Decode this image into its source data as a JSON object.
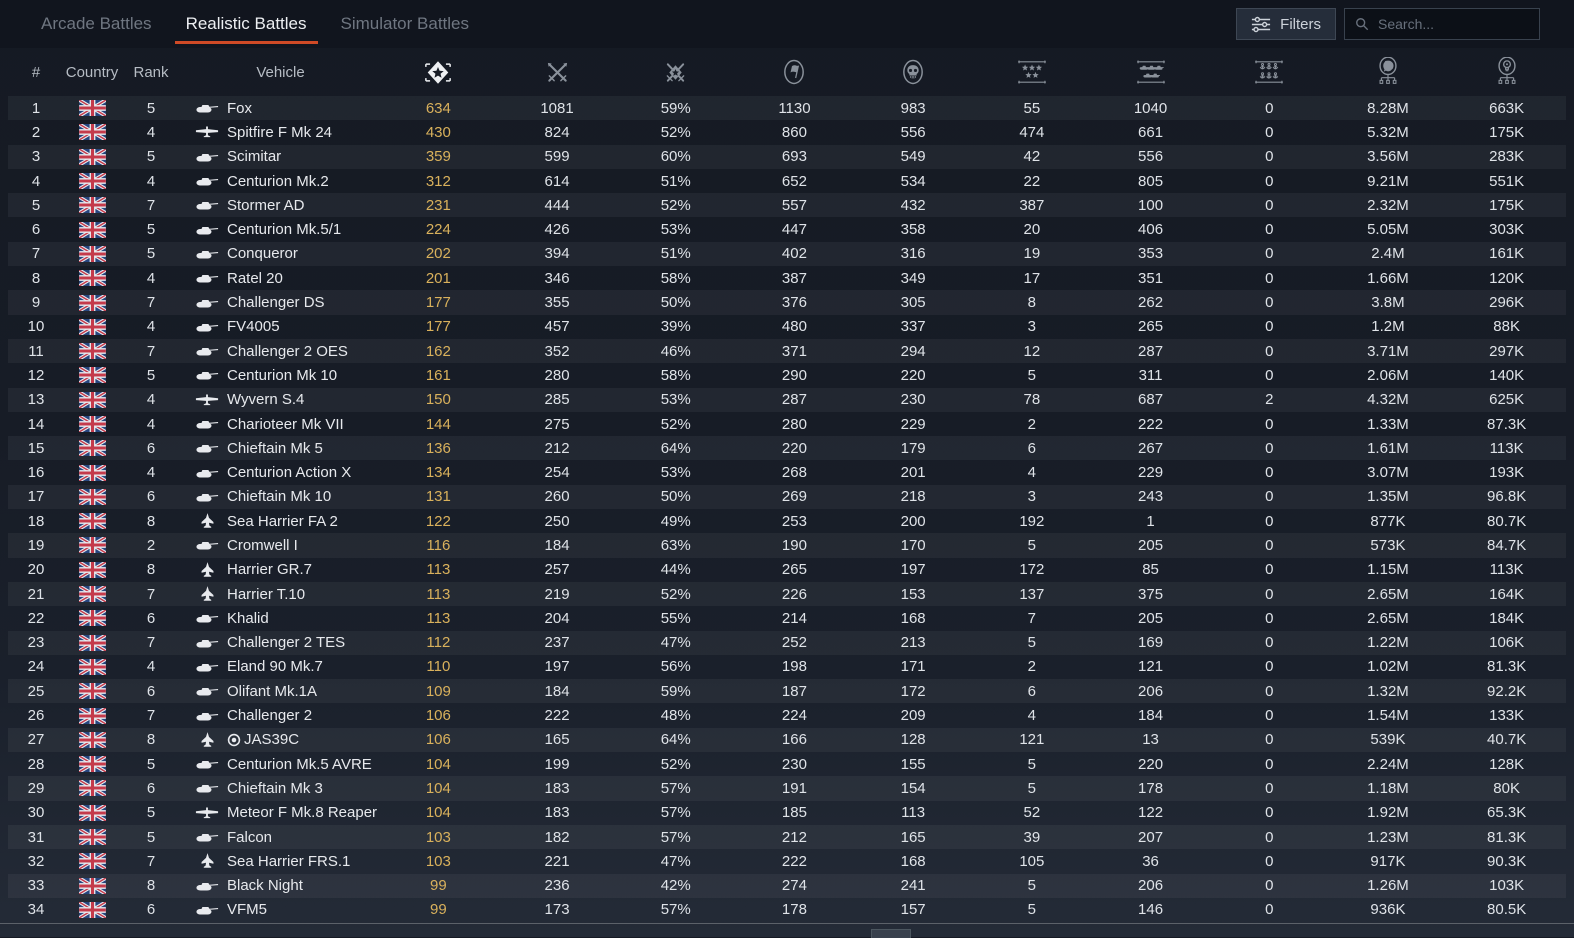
{
  "tabs": [
    {
      "label": "Arcade Battles",
      "active": false
    },
    {
      "label": "Realistic Battles",
      "active": true
    },
    {
      "label": "Simulator Battles",
      "active": false
    }
  ],
  "toolbar": {
    "filters_label": "Filters",
    "search_placeholder": "Search...",
    "filters_icon": "sliders-icon",
    "search_icon": "search-icon"
  },
  "colors": {
    "accent_underline": "#cf4a26",
    "sorted_column_gold": "#d9b15c",
    "background": "#171c26"
  },
  "table": {
    "text_columns": [
      "#",
      "Country",
      "Rank",
      "Vehicle"
    ],
    "icon_columns": [
      {
        "id": "victories",
        "icon": "victories-icon",
        "active": true
      },
      {
        "id": "battles",
        "icon": "battles-swords-icon",
        "active": false
      },
      {
        "id": "win-rate",
        "icon": "win-rate-icon",
        "active": false
      },
      {
        "id": "respawns",
        "icon": "respawns-flag-icon",
        "active": false
      },
      {
        "id": "deaths",
        "icon": "deaths-skull-icon",
        "active": false
      },
      {
        "id": "air-targets",
        "icon": "air-targets-stars-icon",
        "active": false
      },
      {
        "id": "ground-targets",
        "icon": "ground-targets-icon",
        "active": false
      },
      {
        "id": "naval-targets",
        "icon": "naval-targets-anchors-icon",
        "active": false
      },
      {
        "id": "silver-lions",
        "icon": "silver-lions-icon",
        "active": false
      },
      {
        "id": "research-points",
        "icon": "research-points-icon",
        "active": false
      }
    ],
    "rows": [
      {
        "num": 1,
        "country": "uk-flag-icon",
        "rank": 5,
        "icon": "tank-icon",
        "premium": false,
        "vehicle": "Fox",
        "stats": [
          "634",
          "1081",
          "59%",
          "1130",
          "983",
          "55",
          "1040",
          "0",
          "8.28M",
          "663K"
        ]
      },
      {
        "num": 2,
        "country": "uk-flag-icon",
        "rank": 4,
        "icon": "prop-plane-icon",
        "premium": false,
        "vehicle": "Spitfire F Mk 24",
        "stats": [
          "430",
          "824",
          "52%",
          "860",
          "556",
          "474",
          "661",
          "0",
          "5.32M",
          "175K"
        ]
      },
      {
        "num": 3,
        "country": "uk-flag-icon",
        "rank": 5,
        "icon": "tank-icon",
        "premium": false,
        "vehicle": "Scimitar",
        "stats": [
          "359",
          "599",
          "60%",
          "693",
          "549",
          "42",
          "556",
          "0",
          "3.56M",
          "283K"
        ]
      },
      {
        "num": 4,
        "country": "uk-flag-icon",
        "rank": 4,
        "icon": "tank-icon",
        "premium": false,
        "vehicle": "Centurion Mk.2",
        "stats": [
          "312",
          "614",
          "51%",
          "652",
          "534",
          "22",
          "805",
          "0",
          "9.21M",
          "551K"
        ]
      },
      {
        "num": 5,
        "country": "uk-flag-icon",
        "rank": 7,
        "icon": "tank-icon",
        "premium": false,
        "vehicle": "Stormer AD",
        "stats": [
          "231",
          "444",
          "52%",
          "557",
          "432",
          "387",
          "100",
          "0",
          "2.32M",
          "175K"
        ]
      },
      {
        "num": 6,
        "country": "uk-flag-icon",
        "rank": 5,
        "icon": "tank-icon",
        "premium": false,
        "vehicle": "Centurion Mk.5/1",
        "stats": [
          "224",
          "426",
          "53%",
          "447",
          "358",
          "20",
          "406",
          "0",
          "5.05M",
          "303K"
        ]
      },
      {
        "num": 7,
        "country": "uk-flag-icon",
        "rank": 5,
        "icon": "tank-icon",
        "premium": false,
        "vehicle": "Conqueror",
        "stats": [
          "202",
          "394",
          "51%",
          "402",
          "316",
          "19",
          "353",
          "0",
          "2.4M",
          "161K"
        ]
      },
      {
        "num": 8,
        "country": "uk-flag-icon",
        "rank": 4,
        "icon": "tank-icon",
        "premium": false,
        "vehicle": "Ratel 20",
        "stats": [
          "201",
          "346",
          "58%",
          "387",
          "349",
          "17",
          "351",
          "0",
          "1.66M",
          "120K"
        ]
      },
      {
        "num": 9,
        "country": "uk-flag-icon",
        "rank": 7,
        "icon": "tank-icon",
        "premium": false,
        "vehicle": "Challenger DS",
        "stats": [
          "177",
          "355",
          "50%",
          "376",
          "305",
          "8",
          "262",
          "0",
          "3.8M",
          "296K"
        ]
      },
      {
        "num": 10,
        "country": "uk-flag-icon",
        "rank": 4,
        "icon": "tank-icon",
        "premium": false,
        "vehicle": "FV4005",
        "stats": [
          "177",
          "457",
          "39%",
          "480",
          "337",
          "3",
          "265",
          "0",
          "1.2M",
          "88K"
        ]
      },
      {
        "num": 11,
        "country": "uk-flag-icon",
        "rank": 7,
        "icon": "tank-icon",
        "premium": false,
        "vehicle": "Challenger 2 OES",
        "stats": [
          "162",
          "352",
          "46%",
          "371",
          "294",
          "12",
          "287",
          "0",
          "3.71M",
          "297K"
        ]
      },
      {
        "num": 12,
        "country": "uk-flag-icon",
        "rank": 5,
        "icon": "tank-icon",
        "premium": false,
        "vehicle": "Centurion Mk 10",
        "stats": [
          "161",
          "280",
          "58%",
          "290",
          "220",
          "5",
          "311",
          "0",
          "2.06M",
          "140K"
        ]
      },
      {
        "num": 13,
        "country": "uk-flag-icon",
        "rank": 4,
        "icon": "prop-plane-icon",
        "premium": false,
        "vehicle": "Wyvern S.4",
        "stats": [
          "150",
          "285",
          "53%",
          "287",
          "230",
          "78",
          "687",
          "2",
          "4.32M",
          "625K"
        ]
      },
      {
        "num": 14,
        "country": "uk-flag-icon",
        "rank": 4,
        "icon": "tank-icon",
        "premium": false,
        "vehicle": "Charioteer Mk VII",
        "stats": [
          "144",
          "275",
          "52%",
          "280",
          "229",
          "2",
          "222",
          "0",
          "1.33M",
          "87.3K"
        ]
      },
      {
        "num": 15,
        "country": "uk-flag-icon",
        "rank": 6,
        "icon": "tank-icon",
        "premium": false,
        "vehicle": "Chieftain Mk 5",
        "stats": [
          "136",
          "212",
          "64%",
          "220",
          "179",
          "6",
          "267",
          "0",
          "1.61M",
          "113K"
        ]
      },
      {
        "num": 16,
        "country": "uk-flag-icon",
        "rank": 4,
        "icon": "tank-icon",
        "premium": false,
        "vehicle": "Centurion Action X",
        "stats": [
          "134",
          "254",
          "53%",
          "268",
          "201",
          "4",
          "229",
          "0",
          "3.07M",
          "193K"
        ]
      },
      {
        "num": 17,
        "country": "uk-flag-icon",
        "rank": 6,
        "icon": "tank-icon",
        "premium": false,
        "vehicle": "Chieftain Mk 10",
        "stats": [
          "131",
          "260",
          "50%",
          "269",
          "218",
          "3",
          "243",
          "0",
          "1.35M",
          "96.8K"
        ]
      },
      {
        "num": 18,
        "country": "uk-flag-icon",
        "rank": 8,
        "icon": "jet-icon",
        "premium": false,
        "vehicle": "Sea Harrier FA 2",
        "stats": [
          "122",
          "250",
          "49%",
          "253",
          "200",
          "192",
          "1",
          "0",
          "877K",
          "80.7K"
        ]
      },
      {
        "num": 19,
        "country": "uk-flag-icon",
        "rank": 2,
        "icon": "tank-icon",
        "premium": false,
        "vehicle": "Cromwell I",
        "stats": [
          "116",
          "184",
          "63%",
          "190",
          "170",
          "5",
          "205",
          "0",
          "573K",
          "84.7K"
        ]
      },
      {
        "num": 20,
        "country": "uk-flag-icon",
        "rank": 8,
        "icon": "jet-icon",
        "premium": false,
        "vehicle": "Harrier GR.7",
        "stats": [
          "113",
          "257",
          "44%",
          "265",
          "197",
          "172",
          "85",
          "0",
          "1.15M",
          "113K"
        ]
      },
      {
        "num": 21,
        "country": "uk-flag-icon",
        "rank": 7,
        "icon": "jet-icon",
        "premium": false,
        "vehicle": "Harrier T.10",
        "stats": [
          "113",
          "219",
          "52%",
          "226",
          "153",
          "137",
          "375",
          "0",
          "2.65M",
          "164K"
        ]
      },
      {
        "num": 22,
        "country": "uk-flag-icon",
        "rank": 6,
        "icon": "tank-icon",
        "premium": false,
        "vehicle": "Khalid",
        "stats": [
          "113",
          "204",
          "55%",
          "214",
          "168",
          "7",
          "205",
          "0",
          "2.65M",
          "184K"
        ]
      },
      {
        "num": 23,
        "country": "uk-flag-icon",
        "rank": 7,
        "icon": "tank-icon",
        "premium": false,
        "vehicle": "Challenger 2 TES",
        "stats": [
          "112",
          "237",
          "47%",
          "252",
          "213",
          "5",
          "169",
          "0",
          "1.22M",
          "106K"
        ]
      },
      {
        "num": 24,
        "country": "uk-flag-icon",
        "rank": 4,
        "icon": "tank-icon",
        "premium": false,
        "vehicle": "Eland 90 Mk.7",
        "stats": [
          "110",
          "197",
          "56%",
          "198",
          "171",
          "2",
          "121",
          "0",
          "1.02M",
          "81.3K"
        ]
      },
      {
        "num": 25,
        "country": "uk-flag-icon",
        "rank": 6,
        "icon": "tank-icon",
        "premium": false,
        "vehicle": "Olifant Mk.1A",
        "stats": [
          "109",
          "184",
          "59%",
          "187",
          "172",
          "6",
          "206",
          "0",
          "1.32M",
          "92.2K"
        ]
      },
      {
        "num": 26,
        "country": "uk-flag-icon",
        "rank": 7,
        "icon": "tank-icon",
        "premium": false,
        "vehicle": "Challenger 2",
        "stats": [
          "106",
          "222",
          "48%",
          "224",
          "209",
          "4",
          "184",
          "0",
          "1.54M",
          "133K"
        ]
      },
      {
        "num": 27,
        "country": "uk-flag-icon",
        "rank": 8,
        "icon": "jet-icon",
        "premium": true,
        "vehicle": "JAS39C",
        "stats": [
          "106",
          "165",
          "64%",
          "166",
          "128",
          "121",
          "13",
          "0",
          "539K",
          "40.7K"
        ]
      },
      {
        "num": 28,
        "country": "uk-flag-icon",
        "rank": 5,
        "icon": "tank-icon",
        "premium": false,
        "vehicle": "Centurion Mk.5 AVRE",
        "stats": [
          "104",
          "199",
          "52%",
          "230",
          "155",
          "5",
          "220",
          "0",
          "2.24M",
          "128K"
        ]
      },
      {
        "num": 29,
        "country": "uk-flag-icon",
        "rank": 6,
        "icon": "tank-icon",
        "premium": false,
        "vehicle": "Chieftain Mk 3",
        "stats": [
          "104",
          "183",
          "57%",
          "191",
          "154",
          "5",
          "178",
          "0",
          "1.18M",
          "80K"
        ]
      },
      {
        "num": 30,
        "country": "uk-flag-icon",
        "rank": 5,
        "icon": "prop-plane-icon",
        "premium": false,
        "vehicle": "Meteor F Mk.8 Reaper",
        "stats": [
          "104",
          "183",
          "57%",
          "185",
          "113",
          "52",
          "122",
          "0",
          "1.92M",
          "65.3K"
        ]
      },
      {
        "num": 31,
        "country": "uk-flag-icon",
        "rank": 5,
        "icon": "tank-icon",
        "premium": false,
        "vehicle": "Falcon",
        "stats": [
          "103",
          "182",
          "57%",
          "212",
          "165",
          "39",
          "207",
          "0",
          "1.23M",
          "81.3K"
        ]
      },
      {
        "num": 32,
        "country": "uk-flag-icon",
        "rank": 7,
        "icon": "jet-icon",
        "premium": false,
        "vehicle": "Sea Harrier FRS.1",
        "stats": [
          "103",
          "221",
          "47%",
          "222",
          "168",
          "105",
          "36",
          "0",
          "917K",
          "90.3K"
        ]
      },
      {
        "num": 33,
        "country": "uk-flag-icon",
        "rank": 8,
        "icon": "tank-icon",
        "premium": false,
        "vehicle": "Black Night",
        "stats": [
          "99",
          "236",
          "42%",
          "274",
          "241",
          "5",
          "206",
          "0",
          "1.26M",
          "103K"
        ]
      },
      {
        "num": 34,
        "country": "uk-flag-icon",
        "rank": 6,
        "icon": "tank-icon",
        "premium": false,
        "vehicle": "VFM5",
        "stats": [
          "99",
          "173",
          "57%",
          "178",
          "157",
          "5",
          "146",
          "0",
          "936K",
          "80.5K"
        ]
      }
    ]
  }
}
